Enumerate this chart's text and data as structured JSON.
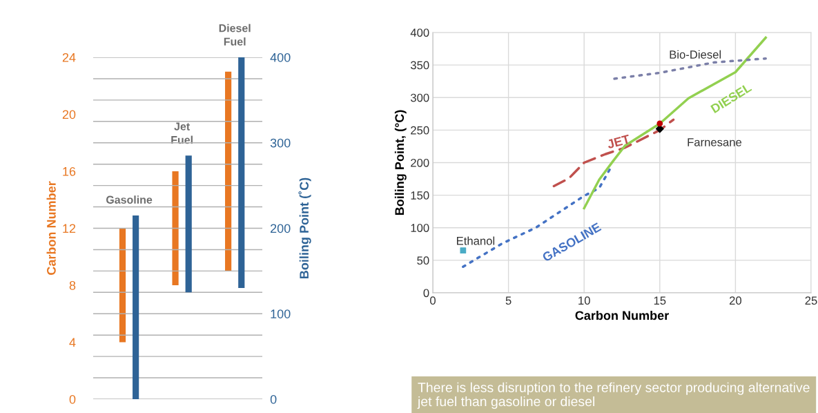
{
  "chart_data": [
    {
      "type": "bar",
      "categories": [
        "Gasoline",
        "Jet\nFuel",
        "Diesel\nFuel"
      ],
      "ylabel": "Carbon Number",
      "y2label": "Boiling Point (˚C)",
      "series": [
        {
          "color": "#e87722",
          "base": [
            4,
            8,
            9
          ],
          "values": [
            8,
            8,
            14
          ]
        },
        {
          "color": "#2e6396",
          "base": [
            0,
            125,
            130
          ],
          "values": [
            215,
            160,
            270
          ],
          "axis": "y2"
        }
      ],
      "ylim": [
        0,
        24
      ],
      "yticks": [
        0,
        4,
        8,
        12,
        16,
        20,
        24
      ],
      "y2lim": [
        0,
        400
      ],
      "y2ticks": [
        0,
        {
          "value": 25,
          "label": null
        },
        {
          "value": 50,
          "label": null
        },
        {
          "value": 75,
          "label": null
        },
        100,
        {
          "value": 125,
          "label": null
        },
        {
          "value": 150,
          "label": null
        },
        {
          "value": 175,
          "label": null
        },
        200,
        {
          "value": 225,
          "label": null
        },
        {
          "value": 250,
          "label": null
        },
        {
          "value": 275,
          "label": null
        },
        300,
        {
          "value": 325,
          "label": null
        },
        {
          "value": 350,
          "label": null
        },
        {
          "value": 375,
          "label": null
        },
        400
      ],
      "grid": "y2",
      "tick_labels": "y"
    },
    {
      "type": "line",
      "xlabel": "Carbon Number",
      "ylabel": "Boiling Point, (°C)",
      "series": [
        {
          "name": "GASOLINE",
          "color": "#4472c4",
          "line_style": "dotted",
          "x": [
            2,
            4.6,
            6.8,
            10,
            11,
            11.8
          ],
          "values": [
            40,
            76,
            100,
            149,
            161,
            194
          ]
        },
        {
          "name": "JET",
          "color": "#c0504d",
          "line_style": "dashed",
          "x": [
            8,
            9,
            10,
            11.4,
            12.7,
            15,
            15.9
          ],
          "values": [
            164,
            176,
            200,
            213,
            223,
            250,
            266
          ]
        },
        {
          "name": "DIESEL",
          "color": "#92d050",
          "line_style": "solid",
          "x": [
            10,
            11,
            11.9,
            12.7,
            15,
            16.9,
            20,
            22
          ],
          "values": [
            130,
            174,
            202,
            226,
            260,
            299,
            339,
            392
          ]
        },
        {
          "name": "Bio-Diesel",
          "color": "#7b7fa8",
          "line_style": "dotted",
          "x": [
            12,
            15,
            18.6,
            22
          ],
          "values": [
            329,
            338,
            354,
            360
          ]
        },
        {
          "name": "Ethanol",
          "type": "scatter",
          "marker": "square",
          "color": "#4bacc6",
          "x": [
            2
          ],
          "values": [
            65
          ]
        },
        {
          "name": "Farnesane",
          "type": "scatter",
          "marker": "diamond",
          "color": "#000000",
          "x": [
            15
          ],
          "values": [
            252
          ]
        },
        {
          "type": "scatter",
          "marker": "circle",
          "color": "#c00000",
          "x": [
            15
          ],
          "values": [
            260
          ]
        }
      ],
      "xlim": [
        0,
        25
      ],
      "xticks": [
        0,
        5,
        10,
        15,
        20,
        25
      ],
      "ylim": [
        0,
        400
      ],
      "yticks": [
        0,
        50,
        100,
        150,
        200,
        250,
        300,
        350,
        400
      ],
      "grid": true,
      "annotations": [
        "There is less disruption to the refinery sector producing alternative jet fuel than gasoline or diesel"
      ]
    }
  ]
}
